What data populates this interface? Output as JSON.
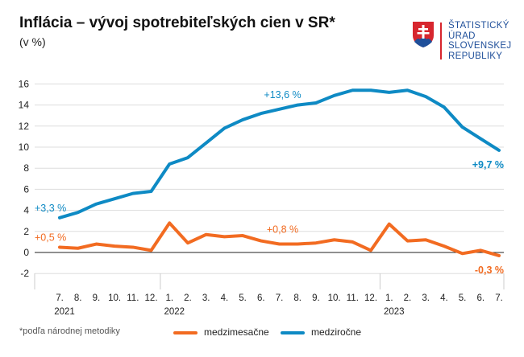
{
  "header": {
    "title": "Inflácia – vývoj spotrebiteľských cien v SR*",
    "subtitle": "(v %)"
  },
  "logo": {
    "lines": [
      "ŠTATISTICKÝ",
      "ÚRAD",
      "SLOVENSKEJ",
      "REPUBLIKY"
    ]
  },
  "footnote": "*podľa národnej metodiky",
  "colors": {
    "mom": "#f26b21",
    "yoy": "#0e8ac4"
  },
  "chart_data": {
    "type": "line",
    "ylim": [
      -2,
      16
    ],
    "yticks": [
      -2,
      0,
      2,
      4,
      6,
      8,
      10,
      12,
      14,
      16
    ],
    "grid": true,
    "legend": "bottom",
    "x": [
      "7.",
      "8.",
      "9.",
      "10.",
      "11.",
      "12.",
      "1.",
      "2.",
      "3.",
      "4.",
      "5.",
      "6.",
      "7.",
      "8.",
      "9.",
      "10.",
      "11.",
      "12.",
      "1.",
      "2.",
      "3.",
      "4.",
      "5.",
      "6.",
      "7."
    ],
    "years": [
      {
        "label": "2021",
        "index": 0
      },
      {
        "label": "2022",
        "index": 6
      },
      {
        "label": "2023",
        "index": 18
      }
    ],
    "series": [
      {
        "name": "medzimesačne",
        "color": "#f26b21",
        "values": [
          0.5,
          0.4,
          0.8,
          0.6,
          0.5,
          0.2,
          2.8,
          0.9,
          1.7,
          1.5,
          1.6,
          1.1,
          0.8,
          0.8,
          0.9,
          1.2,
          1.0,
          0.2,
          2.7,
          1.1,
          1.2,
          0.6,
          -0.1,
          0.2,
          -0.3
        ]
      },
      {
        "name": "medziročne",
        "color": "#0e8ac4",
        "values": [
          3.3,
          3.8,
          4.6,
          5.1,
          5.6,
          5.8,
          8.4,
          9.0,
          10.4,
          11.8,
          12.6,
          13.2,
          13.6,
          14.0,
          14.2,
          14.9,
          15.4,
          15.4,
          15.2,
          15.4,
          14.8,
          13.8,
          11.9,
          10.8,
          9.7
        ]
      }
    ],
    "annotations": [
      {
        "text": "+3,3 %",
        "series": 1,
        "index": 0
      },
      {
        "text": "+13,6 %",
        "series": 1,
        "index": 12
      },
      {
        "text": "+9,7 %",
        "series": 1,
        "index": 24
      },
      {
        "text": "+0,5 %",
        "series": 0,
        "index": 0
      },
      {
        "text": "+0,8 %",
        "series": 0,
        "index": 12
      },
      {
        "text": "-0,3 %",
        "series": 0,
        "index": 24
      }
    ]
  }
}
